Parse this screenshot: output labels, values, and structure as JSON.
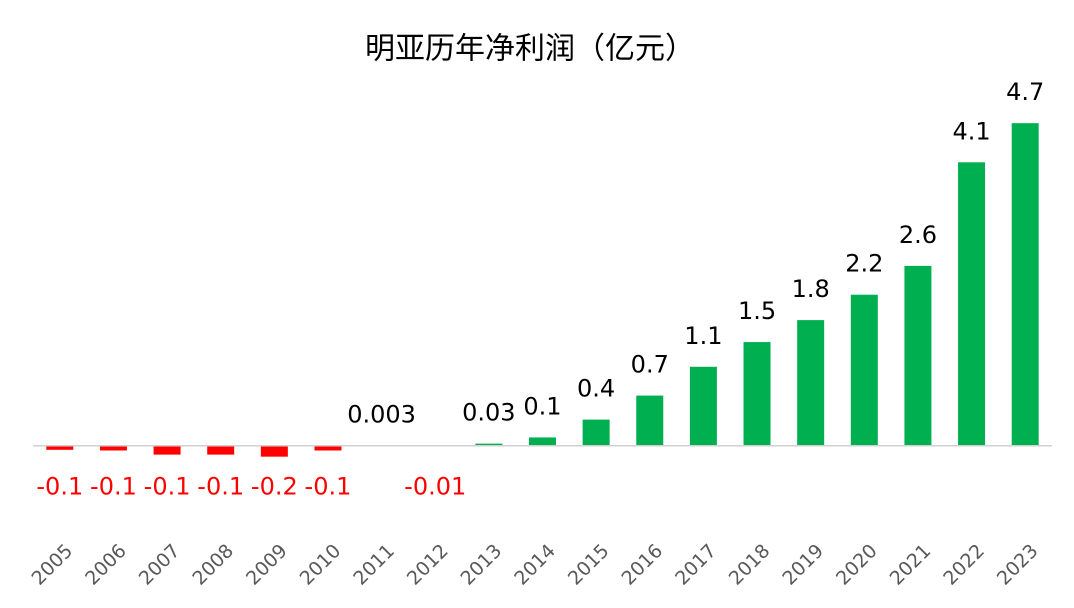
{
  "chart_data": {
    "type": "bar",
    "title": "明亚历年净利润（亿元）",
    "categories": [
      "2005",
      "2006",
      "2007",
      "2008",
      "2009",
      "2010",
      "2011",
      "2012",
      "2013",
      "2014",
      "2015",
      "2016",
      "2017",
      "2018",
      "2019",
      "2020",
      "2021",
      "2022",
      "2023"
    ],
    "values": [
      -0.06,
      -0.07,
      -0.13,
      -0.13,
      -0.16,
      -0.07,
      0.003,
      -0.01,
      0.03,
      0.12,
      0.38,
      0.73,
      1.15,
      1.51,
      1.83,
      2.2,
      2.62,
      4.13,
      4.7
    ],
    "value_labels": [
      "-0.1",
      "-0.1",
      "-0.1",
      "-0.1",
      "-0.2",
      "-0.1",
      "0.003",
      "-0.01",
      "0.03",
      "0.1",
      "0.4",
      "0.7",
      "1.1",
      "1.5",
      "1.8",
      "2.2",
      "2.6",
      "4.1",
      "4.7"
    ],
    "positive_color": "#00b050",
    "negative_color": "#ff0000",
    "ylim": [
      -0.5,
      5.3
    ]
  }
}
